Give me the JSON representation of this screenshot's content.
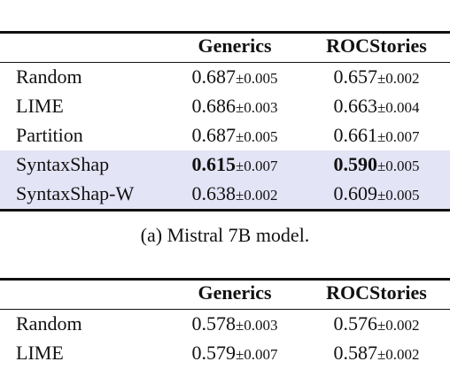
{
  "tables": [
    {
      "columns": [
        "Generics",
        "ROCStories"
      ],
      "rows": [
        {
          "label": "Random",
          "cells": [
            {
              "value": "0.687",
              "pm": "±0.005"
            },
            {
              "value": "0.657",
              "pm": "±0.002"
            }
          ]
        },
        {
          "label": "LIME",
          "cells": [
            {
              "value": "0.686",
              "pm": "±0.003"
            },
            {
              "value": "0.663",
              "pm": "±0.004"
            }
          ]
        },
        {
          "label": "Partition",
          "cells": [
            {
              "value": "0.687",
              "pm": "±0.005"
            },
            {
              "value": "0.661",
              "pm": "±0.007"
            }
          ]
        },
        {
          "label": "SyntaxShap",
          "highlight": true,
          "cells": [
            {
              "value": "0.615",
              "pm": "±0.007",
              "bold": true
            },
            {
              "value": "0.590",
              "pm": "±0.005",
              "bold": true
            }
          ]
        },
        {
          "label": "SyntaxShap-W",
          "highlight": true,
          "cells": [
            {
              "value": "0.638",
              "pm": "±0.002"
            },
            {
              "value": "0.609",
              "pm": "±0.005"
            }
          ]
        }
      ],
      "caption": "(a) Mistral 7B model."
    },
    {
      "columns": [
        "Generics",
        "ROCStories"
      ],
      "rows": [
        {
          "label": "Random",
          "cells": [
            {
              "value": "0.578",
              "pm": "±0.003"
            },
            {
              "value": "0.576",
              "pm": "±0.002"
            }
          ]
        },
        {
          "label": "LIME",
          "cells": [
            {
              "value": "0.579",
              "pm": "±0.007"
            },
            {
              "value": "0.587",
              "pm": "±0.002"
            }
          ]
        }
      ]
    }
  ]
}
